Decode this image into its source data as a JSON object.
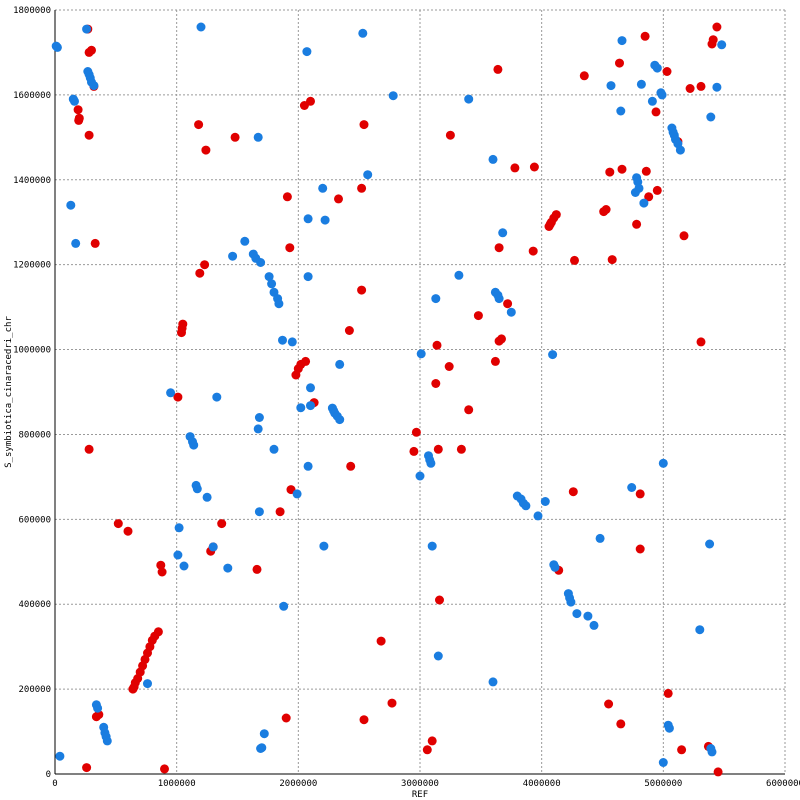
{
  "chart_data": {
    "type": "scatter",
    "xlabel": "REF",
    "ylabel": "S_symbiotica_cinaracedri_chr",
    "xlim": [
      0,
      6000000
    ],
    "ylim": [
      0,
      1800000
    ],
    "x_ticks": [
      "0",
      "1000000",
      "2000000",
      "3000000",
      "4000000",
      "5000000",
      "6000000"
    ],
    "y_ticks": [
      "0",
      "200000",
      "400000",
      "600000",
      "800000",
      "1000000",
      "1200000",
      "1400000",
      "1600000",
      "1800000"
    ],
    "x_tick_values": [
      0,
      1000000,
      2000000,
      3000000,
      4000000,
      5000000,
      6000000
    ],
    "y_tick_values": [
      0,
      200000,
      400000,
      600000,
      800000,
      1000000,
      1200000,
      1400000,
      1600000,
      1800000
    ],
    "grid": true,
    "point_radius": 4.5,
    "series": [
      {
        "color": "#e00000",
        "points": [
          [
            270000,
            1755000
          ],
          [
            280000,
            1700000
          ],
          [
            300000,
            1705000
          ],
          [
            190000,
            1565000
          ],
          [
            195000,
            1540000
          ],
          [
            200000,
            1545000
          ],
          [
            280000,
            1505000
          ],
          [
            320000,
            1620000
          ],
          [
            330000,
            1250000
          ],
          [
            280000,
            765000
          ],
          [
            260000,
            15000
          ],
          [
            900000,
            12000
          ],
          [
            340000,
            135000
          ],
          [
            360000,
            140000
          ],
          [
            520000,
            590000
          ],
          [
            600000,
            572000
          ],
          [
            870000,
            492000
          ],
          [
            880000,
            476000
          ],
          [
            1010000,
            888000
          ],
          [
            1040000,
            1040000
          ],
          [
            1045000,
            1050000
          ],
          [
            1050000,
            1060000
          ],
          [
            640000,
            200000
          ],
          [
            650000,
            205000
          ],
          [
            660000,
            215000
          ],
          [
            680000,
            225000
          ],
          [
            700000,
            240000
          ],
          [
            720000,
            255000
          ],
          [
            740000,
            270000
          ],
          [
            760000,
            285000
          ],
          [
            780000,
            300000
          ],
          [
            800000,
            315000
          ],
          [
            820000,
            325000
          ],
          [
            850000,
            335000
          ],
          [
            1180000,
            1530000
          ],
          [
            1240000,
            1470000
          ],
          [
            1230000,
            1200000
          ],
          [
            1190000,
            1180000
          ],
          [
            1370000,
            590000
          ],
          [
            1280000,
            525000
          ],
          [
            1300000,
            535000
          ],
          [
            1660000,
            482000
          ],
          [
            1480000,
            1500000
          ],
          [
            1850000,
            618000
          ],
          [
            1910000,
            1360000
          ],
          [
            1930000,
            1240000
          ],
          [
            1940000,
            670000
          ],
          [
            1980000,
            940000
          ],
          [
            2000000,
            955000
          ],
          [
            2020000,
            965000
          ],
          [
            2060000,
            972000
          ],
          [
            2130000,
            875000
          ],
          [
            1900000,
            132000
          ],
          [
            2050000,
            1575000
          ],
          [
            2100000,
            1585000
          ],
          [
            2330000,
            1355000
          ],
          [
            2420000,
            1045000
          ],
          [
            2430000,
            725000
          ],
          [
            2540000,
            1530000
          ],
          [
            2520000,
            1380000
          ],
          [
            2520000,
            1140000
          ],
          [
            2540000,
            128000
          ],
          [
            2680000,
            313000
          ],
          [
            2770000,
            167000
          ],
          [
            2950000,
            760000
          ],
          [
            2970000,
            805000
          ],
          [
            3060000,
            57000
          ],
          [
            3100000,
            78000
          ],
          [
            3130000,
            920000
          ],
          [
            3140000,
            1010000
          ],
          [
            3150000,
            765000
          ],
          [
            3160000,
            410000
          ],
          [
            3240000,
            960000
          ],
          [
            3250000,
            1505000
          ],
          [
            3340000,
            765000
          ],
          [
            3400000,
            858000
          ],
          [
            3480000,
            1080000
          ],
          [
            3640000,
            1660000
          ],
          [
            3650000,
            1240000
          ],
          [
            3620000,
            972000
          ],
          [
            3650000,
            1020000
          ],
          [
            3670000,
            1025000
          ],
          [
            3720000,
            1108000
          ],
          [
            3780000,
            1428000
          ],
          [
            3930000,
            1232000
          ],
          [
            3940000,
            1430000
          ],
          [
            4060000,
            1290000
          ],
          [
            4070000,
            1295000
          ],
          [
            4080000,
            1300000
          ],
          [
            4100000,
            1310000
          ],
          [
            4120000,
            1318000
          ],
          [
            4140000,
            480000
          ],
          [
            4260000,
            665000
          ],
          [
            4270000,
            1210000
          ],
          [
            4350000,
            1645000
          ],
          [
            4510000,
            1325000
          ],
          [
            4530000,
            1330000
          ],
          [
            4560000,
            1418000
          ],
          [
            4550000,
            165000
          ],
          [
            4580000,
            1212000
          ],
          [
            4640000,
            1675000
          ],
          [
            4660000,
            1425000
          ],
          [
            4650000,
            118000
          ],
          [
            4780000,
            1295000
          ],
          [
            4810000,
            660000
          ],
          [
            4810000,
            530000
          ],
          [
            4850000,
            1738000
          ],
          [
            4860000,
            1420000
          ],
          [
            4880000,
            1360000
          ],
          [
            4940000,
            1560000
          ],
          [
            4950000,
            1375000
          ],
          [
            5030000,
            1655000
          ],
          [
            5040000,
            190000
          ],
          [
            5120000,
            1490000
          ],
          [
            5150000,
            57000
          ],
          [
            5170000,
            1268000
          ],
          [
            5220000,
            1615000
          ],
          [
            5310000,
            1620000
          ],
          [
            5310000,
            1018000
          ],
          [
            5370000,
            65000
          ],
          [
            5400000,
            1720000
          ],
          [
            5410000,
            1730000
          ],
          [
            5440000,
            1760000
          ],
          [
            5450000,
            5000
          ]
        ]
      },
      {
        "color": "#1a7de0",
        "points": [
          [
            10000,
            1715000
          ],
          [
            20000,
            1712000
          ],
          [
            40000,
            42000
          ],
          [
            130000,
            1340000
          ],
          [
            150000,
            1590000
          ],
          [
            160000,
            1585000
          ],
          [
            170000,
            1250000
          ],
          [
            260000,
            1755000
          ],
          [
            270000,
            1655000
          ],
          [
            280000,
            1648000
          ],
          [
            290000,
            1640000
          ],
          [
            300000,
            1630000
          ],
          [
            320000,
            1622000
          ],
          [
            340000,
            163000
          ],
          [
            350000,
            155000
          ],
          [
            400000,
            110000
          ],
          [
            410000,
            97000
          ],
          [
            420000,
            88000
          ],
          [
            430000,
            78000
          ],
          [
            760000,
            213000
          ],
          [
            950000,
            898000
          ],
          [
            1010000,
            516000
          ],
          [
            1020000,
            580000
          ],
          [
            1060000,
            490000
          ],
          [
            1110000,
            795000
          ],
          [
            1130000,
            783000
          ],
          [
            1140000,
            775000
          ],
          [
            1160000,
            680000
          ],
          [
            1170000,
            672000
          ],
          [
            1200000,
            1760000
          ],
          [
            1250000,
            652000
          ],
          [
            1300000,
            535000
          ],
          [
            1330000,
            888000
          ],
          [
            1420000,
            485000
          ],
          [
            1460000,
            1220000
          ],
          [
            1560000,
            1255000
          ],
          [
            1630000,
            1225000
          ],
          [
            1650000,
            1215000
          ],
          [
            1690000,
            1205000
          ],
          [
            1760000,
            1172000
          ],
          [
            1780000,
            1155000
          ],
          [
            1800000,
            1135000
          ],
          [
            1830000,
            1120000
          ],
          [
            1840000,
            1108000
          ],
          [
            1670000,
            1500000
          ],
          [
            1680000,
            840000
          ],
          [
            1670000,
            813000
          ],
          [
            1680000,
            618000
          ],
          [
            1690000,
            60000
          ],
          [
            1700000,
            62000
          ],
          [
            1720000,
            95000
          ],
          [
            1800000,
            765000
          ],
          [
            1870000,
            1022000
          ],
          [
            1880000,
            395000
          ],
          [
            1950000,
            1018000
          ],
          [
            1990000,
            660000
          ],
          [
            2020000,
            863000
          ],
          [
            2070000,
            1702000
          ],
          [
            2080000,
            1308000
          ],
          [
            2080000,
            1172000
          ],
          [
            2080000,
            725000
          ],
          [
            2100000,
            868000
          ],
          [
            2100000,
            910000
          ],
          [
            2200000,
            1380000
          ],
          [
            2220000,
            1305000
          ],
          [
            2210000,
            537000
          ],
          [
            2280000,
            862000
          ],
          [
            2290000,
            856000
          ],
          [
            2300000,
            850000
          ],
          [
            2320000,
            843000
          ],
          [
            2340000,
            835000
          ],
          [
            2340000,
            965000
          ],
          [
            2530000,
            1745000
          ],
          [
            2570000,
            1412000
          ],
          [
            2780000,
            1598000
          ],
          [
            3000000,
            702000
          ],
          [
            3010000,
            990000
          ],
          [
            3070000,
            750000
          ],
          [
            3080000,
            740000
          ],
          [
            3090000,
            732000
          ],
          [
            3100000,
            537000
          ],
          [
            3130000,
            1120000
          ],
          [
            3150000,
            278000
          ],
          [
            3400000,
            1590000
          ],
          [
            3320000,
            1175000
          ],
          [
            3600000,
            1448000
          ],
          [
            3620000,
            1135000
          ],
          [
            3640000,
            1128000
          ],
          [
            3650000,
            1120000
          ],
          [
            3680000,
            1275000
          ],
          [
            3750000,
            1088000
          ],
          [
            3600000,
            217000
          ],
          [
            3800000,
            655000
          ],
          [
            3830000,
            648000
          ],
          [
            3850000,
            638000
          ],
          [
            3870000,
            632000
          ],
          [
            3970000,
            608000
          ],
          [
            4030000,
            642000
          ],
          [
            4090000,
            988000
          ],
          [
            4100000,
            493000
          ],
          [
            4110000,
            487000
          ],
          [
            4220000,
            425000
          ],
          [
            4230000,
            415000
          ],
          [
            4240000,
            405000
          ],
          [
            4290000,
            378000
          ],
          [
            4380000,
            372000
          ],
          [
            4430000,
            350000
          ],
          [
            4480000,
            555000
          ],
          [
            4570000,
            1622000
          ],
          [
            4650000,
            1562000
          ],
          [
            4660000,
            1728000
          ],
          [
            4740000,
            675000
          ],
          [
            4770000,
            1370000
          ],
          [
            4780000,
            1405000
          ],
          [
            4790000,
            1395000
          ],
          [
            4800000,
            1380000
          ],
          [
            4820000,
            1625000
          ],
          [
            4840000,
            1345000
          ],
          [
            4910000,
            1585000
          ],
          [
            4930000,
            1670000
          ],
          [
            4950000,
            1663000
          ],
          [
            4980000,
            1605000
          ],
          [
            4990000,
            1600000
          ],
          [
            5000000,
            27000
          ],
          [
            5000000,
            732000
          ],
          [
            5040000,
            115000
          ],
          [
            5050000,
            108000
          ],
          [
            5070000,
            1522000
          ],
          [
            5080000,
            1512000
          ],
          [
            5090000,
            1505000
          ],
          [
            5100000,
            1495000
          ],
          [
            5120000,
            1485000
          ],
          [
            5140000,
            1470000
          ],
          [
            5300000,
            340000
          ],
          [
            5390000,
            1548000
          ],
          [
            5390000,
            60000
          ],
          [
            5400000,
            52000
          ],
          [
            5440000,
            1618000
          ],
          [
            5480000,
            1718000
          ],
          [
            5380000,
            542000
          ]
        ]
      }
    ]
  }
}
